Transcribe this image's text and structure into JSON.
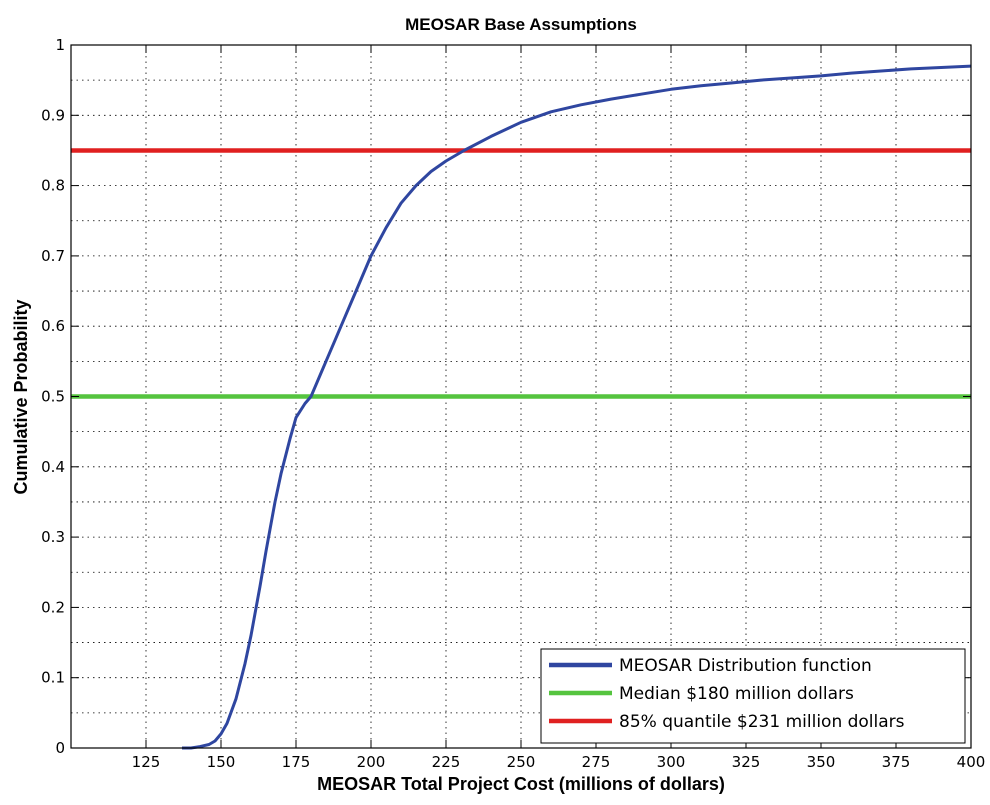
{
  "chart_data": {
    "type": "line",
    "title": "MEOSAR Base Assumptions",
    "xlabel": "MEOSAR Total Project Cost (millions of dollars)",
    "ylabel": "Cumulative Probability",
    "xlim": [
      100,
      400
    ],
    "ylim": [
      0,
      1
    ],
    "xticks": [
      "125",
      "150",
      "175",
      "200",
      "225",
      "250",
      "275",
      "300",
      "325",
      "350",
      "375",
      "400"
    ],
    "yticks": [
      "0",
      "0.1",
      "0.2",
      "0.3",
      "0.4",
      "0.5",
      "0.6",
      "0.7",
      "0.8",
      "0.9",
      "1"
    ],
    "grid": true,
    "legend_position": "bottom-right",
    "series": [
      {
        "name": "MEOSAR Distribution function",
        "color": "#2f46a0",
        "x": [
          137,
          140,
          143,
          146,
          148,
          150,
          152,
          155,
          158,
          160,
          163,
          165,
          168,
          170,
          173,
          175,
          178,
          180,
          183,
          185,
          188,
          190,
          195,
          200,
          205,
          210,
          215,
          220,
          225,
          231,
          240,
          250,
          260,
          270,
          280,
          290,
          300,
          310,
          320,
          330,
          340,
          350,
          360,
          370,
          380,
          390,
          400
        ],
        "y": [
          0.0,
          0.0,
          0.002,
          0.005,
          0.01,
          0.02,
          0.035,
          0.07,
          0.12,
          0.16,
          0.23,
          0.28,
          0.35,
          0.39,
          0.44,
          0.47,
          0.49,
          0.5,
          0.53,
          0.55,
          0.58,
          0.6,
          0.65,
          0.7,
          0.74,
          0.775,
          0.8,
          0.82,
          0.835,
          0.85,
          0.87,
          0.89,
          0.905,
          0.915,
          0.923,
          0.93,
          0.937,
          0.942,
          0.946,
          0.95,
          0.953,
          0.956,
          0.96,
          0.963,
          0.966,
          0.968,
          0.97
        ]
      },
      {
        "name": "Median $180 million dollars",
        "color": "#55c43f",
        "x": [
          100,
          400
        ],
        "y": [
          0.5,
          0.5
        ]
      },
      {
        "name": "85% quantile $231 million dollars",
        "color": "#e02020",
        "x": [
          100,
          400
        ],
        "y": [
          0.85,
          0.85
        ]
      }
    ]
  }
}
